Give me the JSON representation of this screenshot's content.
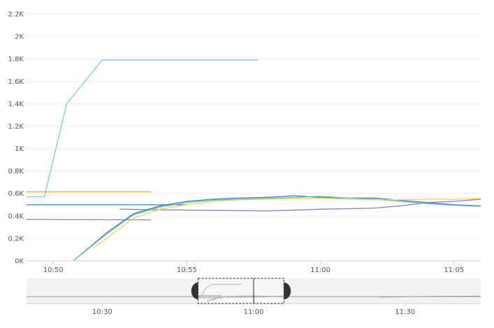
{
  "chart_data": {
    "type": "line",
    "title": "",
    "xlabel": "",
    "ylabel": "",
    "ylim": [
      0,
      2200
    ],
    "y_ticks": [
      "0K",
      "0.2K",
      "0.4K",
      "0.6K",
      "0.8K",
      "1K",
      "1.2K",
      "1.4K",
      "1.6K",
      "1.8K",
      "2K",
      "2.2K"
    ],
    "y_tick_values": [
      0,
      200,
      400,
      600,
      800,
      1000,
      1200,
      1400,
      1600,
      1800,
      2000,
      2200
    ],
    "x_range": [
      "10:49",
      "11:06"
    ],
    "x_ticks": [
      "10:50",
      "10:55",
      "11:00",
      "11:05"
    ],
    "x_tick_values": [
      "10:50",
      "10:55",
      "11:00",
      "11:05"
    ],
    "grid": true,
    "series": [
      {
        "color": "#7ec8e3",
        "points": [
          [
            "10:49",
            570
          ],
          [
            "10:49:40",
            570
          ],
          [
            "10:50:30",
            1400
          ],
          [
            "10:51:50",
            1790
          ],
          [
            "10:57:40",
            1790
          ]
        ]
      },
      {
        "color": "#f0b429",
        "points": [
          [
            "10:49",
            615
          ],
          [
            "10:53:40",
            615
          ]
        ]
      },
      {
        "color": "#4a90c2",
        "points": [
          [
            "10:49",
            500
          ],
          [
            "10:55",
            500
          ]
        ]
      },
      {
        "color": "#8e7cc3",
        "points": [
          [
            "10:49",
            370
          ],
          [
            "10:53:40",
            365
          ]
        ]
      },
      {
        "color": "#8e7cc3",
        "points": [
          [
            "10:52:30",
            460
          ],
          [
            "10:54",
            455
          ],
          [
            "10:56",
            450
          ],
          [
            "10:58",
            445
          ],
          [
            "11:00",
            460
          ],
          [
            "11:02",
            470
          ],
          [
            "11:03",
            490
          ],
          [
            "11:04",
            520
          ],
          [
            "11:05",
            530
          ],
          [
            "11:06",
            550
          ]
        ]
      },
      {
        "color": "#3a7fbf",
        "points": [
          [
            "10:50:45",
            0
          ],
          [
            "10:52",
            250
          ],
          [
            "10:53",
            420
          ],
          [
            "10:54",
            490
          ],
          [
            "10:55",
            530
          ],
          [
            "10:56",
            550
          ],
          [
            "10:57",
            560
          ],
          [
            "10:58",
            565
          ],
          [
            "10:59",
            580
          ],
          [
            "11:00",
            565
          ],
          [
            "11:01",
            560
          ],
          [
            "11:02",
            560
          ],
          [
            "11:03",
            540
          ],
          [
            "11:04",
            520
          ],
          [
            "11:05",
            500
          ],
          [
            "11:06",
            490
          ]
        ]
      },
      {
        "color": "#6cc4b0",
        "points": [
          [
            "10:50:45",
            0
          ],
          [
            "10:52",
            240
          ],
          [
            "10:53",
            410
          ],
          [
            "10:54",
            480
          ],
          [
            "10:55",
            520
          ],
          [
            "10:56",
            540
          ],
          [
            "10:57",
            550
          ],
          [
            "10:58",
            555
          ],
          [
            "10:59",
            565
          ],
          [
            "11:00",
            575
          ],
          [
            "11:01",
            560
          ],
          [
            "11:02",
            550
          ],
          [
            "11:03",
            530
          ],
          [
            "11:04",
            510
          ],
          [
            "11:05",
            495
          ],
          [
            "11:06",
            485
          ]
        ]
      },
      {
        "color": "#f4d35e",
        "points": [
          [
            "10:51:30",
            120
          ],
          [
            "10:52",
            200
          ],
          [
            "10:53",
            380
          ],
          [
            "10:54",
            460
          ],
          [
            "10:55",
            500
          ],
          [
            "10:56",
            530
          ],
          [
            "10:57",
            545
          ],
          [
            "10:58",
            550
          ],
          [
            "10:59",
            555
          ],
          [
            "11:00",
            560
          ],
          [
            "11:01",
            550
          ],
          [
            "11:02",
            545
          ],
          [
            "11:03",
            545
          ],
          [
            "11:04",
            550
          ],
          [
            "11:05",
            550
          ],
          [
            "11:06",
            555
          ]
        ]
      }
    ]
  },
  "navigator": {
    "x_range": [
      "10:15",
      "11:45"
    ],
    "x_ticks": [
      "10:30",
      "11:00",
      "11:30"
    ],
    "x_tick_values": [
      "10:30",
      "11:00",
      "11:30"
    ],
    "selection": [
      "10:49",
      "11:06"
    ],
    "handle_color": "#333333"
  }
}
